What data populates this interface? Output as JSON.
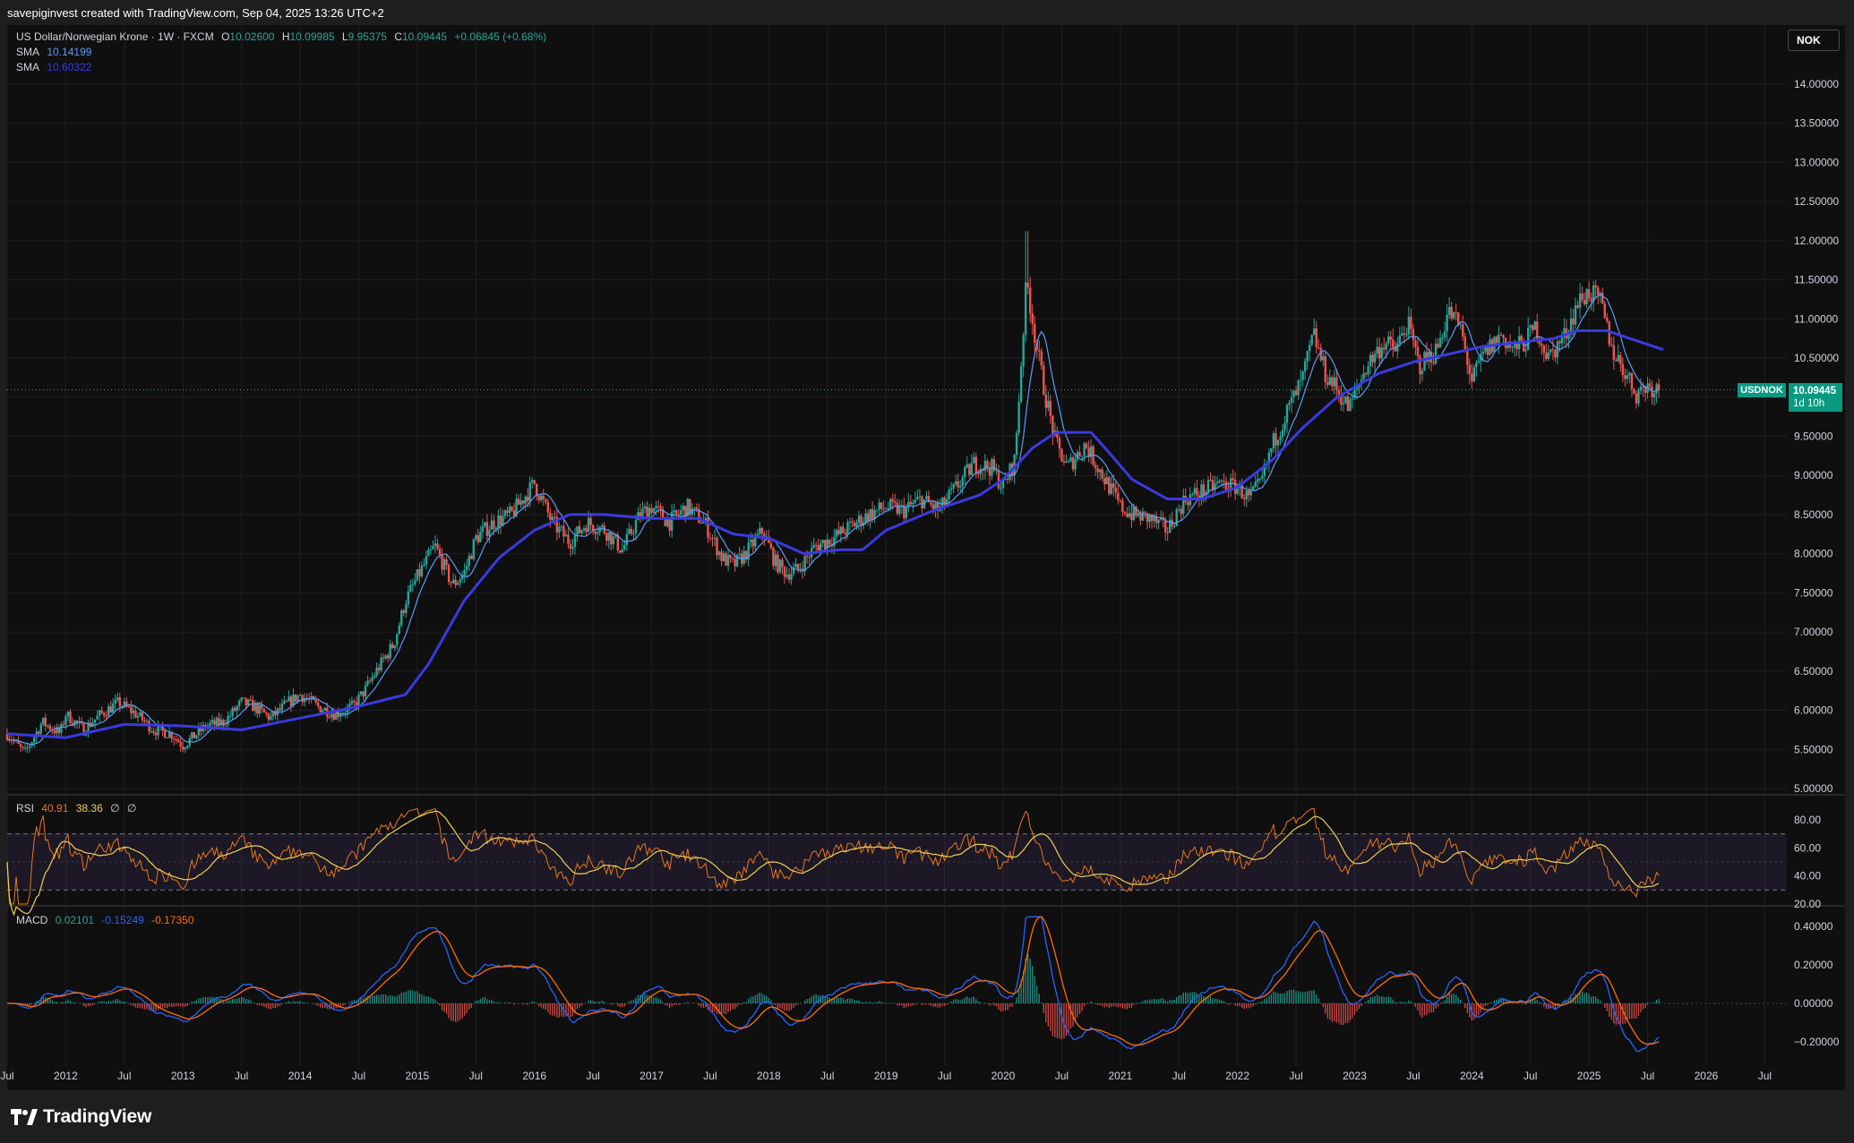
{
  "header": {
    "credit": "savepiginvest created with TradingView.com, Sep 04, 2025 13:26 UTC+2"
  },
  "legend": {
    "title": "US Dollar/Norwegian Krone · 1W · FXCM",
    "open_label": "O",
    "open": "10.02600",
    "high_label": "H",
    "high": "10.09985",
    "low_label": "L",
    "low": "9.95375",
    "close_label": "C",
    "close": "10.09445",
    "change": "+0.06845 (+0.68%)",
    "sma1_label": "SMA",
    "sma1_value": "10.14199",
    "sma2_label": "SMA",
    "sma2_value": "10.60322"
  },
  "rsi_legend": {
    "label": "RSI",
    "v1": "40.91",
    "v2": "38.36",
    "extra1": "∅",
    "extra2": "∅"
  },
  "macd_legend": {
    "label": "MACD",
    "v1": "0.02101",
    "v2": "-0.15249",
    "v3": "-0.17350"
  },
  "currency": "NOK",
  "price_tag": {
    "symbol": "USDNOK",
    "price": "10.09445",
    "countdown": "1d 10h"
  },
  "colors": {
    "background": "#0f0f0f",
    "up": "#26a69a",
    "down": "#ef5350",
    "sma_fast": "#5b9cf6",
    "sma_slow": "#3a3ae0",
    "rsi": "#e8761e",
    "rsi_ma": "#f0d050",
    "macd": "#2962ff",
    "signal": "#ff6d00",
    "price_tag": "#089981"
  },
  "footer": {
    "brand": "TradingView"
  },
  "chart_data": [
    {
      "type": "candlestick",
      "title": "US Dollar/Norwegian Krone · 1W · FXCM",
      "ylim": [
        5.0,
        14.0
      ],
      "y_ticks": [
        "14.00000",
        "13.50000",
        "13.00000",
        "12.50000",
        "12.00000",
        "11.50000",
        "11.00000",
        "10.50000",
        "10.00000",
        "9.50000",
        "9.00000",
        "8.50000",
        "8.00000",
        "7.50000",
        "7.00000",
        "6.50000",
        "6.00000",
        "5.50000",
        "5.00000"
      ],
      "x_ticks": [
        "Jul",
        "2012",
        "Jul",
        "2013",
        "Jul",
        "2014",
        "Jul",
        "2015",
        "Jul",
        "2016",
        "Jul",
        "2017",
        "Jul",
        "2018",
        "Jul",
        "2019",
        "Jul",
        "2020",
        "Jul",
        "2021",
        "Jul",
        "2022",
        "Jul",
        "2023",
        "Jul",
        "2024",
        "Jul",
        "2025",
        "Jul",
        "2026",
        "Jul"
      ],
      "x_tick_times": [
        2011.5,
        2012,
        2012.5,
        2013,
        2013.5,
        2014,
        2014.5,
        2015,
        2015.5,
        2016,
        2016.5,
        2017,
        2017.5,
        2018,
        2018.5,
        2019,
        2019.5,
        2020,
        2020.5,
        2021,
        2021.5,
        2022,
        2022.5,
        2023,
        2023.5,
        2024,
        2024.5,
        2025,
        2025.5,
        2026,
        2026.5
      ],
      "price_path": [
        [
          2011.5,
          5.7
        ],
        [
          2011.65,
          5.45
        ],
        [
          2011.8,
          5.85
        ],
        [
          2011.95,
          5.7
        ],
        [
          2012.0,
          5.95
        ],
        [
          2012.15,
          5.75
        ],
        [
          2012.3,
          5.95
        ],
        [
          2012.45,
          6.1
        ],
        [
          2012.6,
          5.95
        ],
        [
          2012.75,
          5.75
        ],
        [
          2012.9,
          5.7
        ],
        [
          2013.0,
          5.55
        ],
        [
          2013.2,
          5.8
        ],
        [
          2013.35,
          5.85
        ],
        [
          2013.5,
          6.1
        ],
        [
          2013.6,
          6.05
        ],
        [
          2013.75,
          5.9
        ],
        [
          2013.9,
          6.1
        ],
        [
          2014.0,
          6.2
        ],
        [
          2014.15,
          6.05
        ],
        [
          2014.3,
          5.95
        ],
        [
          2014.45,
          6.05
        ],
        [
          2014.55,
          6.25
        ],
        [
          2014.65,
          6.5
        ],
        [
          2014.8,
          6.85
        ],
        [
          2014.9,
          7.4
        ],
        [
          2015.0,
          7.7
        ],
        [
          2015.15,
          8.1
        ],
        [
          2015.3,
          7.6
        ],
        [
          2015.4,
          7.75
        ],
        [
          2015.5,
          8.2
        ],
        [
          2015.65,
          8.4
        ],
        [
          2015.8,
          8.5
        ],
        [
          2016.0,
          8.9
        ],
        [
          2016.15,
          8.4
        ],
        [
          2016.3,
          8.15
        ],
        [
          2016.45,
          8.4
        ],
        [
          2016.6,
          8.3
        ],
        [
          2016.75,
          8.05
        ],
        [
          2016.9,
          8.5
        ],
        [
          2017.0,
          8.6
        ],
        [
          2017.15,
          8.4
        ],
        [
          2017.3,
          8.6
        ],
        [
          2017.45,
          8.4
        ],
        [
          2017.6,
          7.95
        ],
        [
          2017.7,
          7.85
        ],
        [
          2017.8,
          8.0
        ],
        [
          2017.95,
          8.3
        ],
        [
          2018.05,
          7.9
        ],
        [
          2018.15,
          7.75
        ],
        [
          2018.25,
          7.8
        ],
        [
          2018.4,
          8.1
        ],
        [
          2018.55,
          8.2
        ],
        [
          2018.7,
          8.35
        ],
        [
          2018.85,
          8.5
        ],
        [
          2019.0,
          8.6
        ],
        [
          2019.15,
          8.55
        ],
        [
          2019.3,
          8.7
        ],
        [
          2019.45,
          8.55
        ],
        [
          2019.6,
          8.85
        ],
        [
          2019.75,
          9.15
        ],
        [
          2019.9,
          9.1
        ],
        [
          2020.0,
          8.85
        ],
        [
          2020.1,
          9.2
        ],
        [
          2020.2,
          11.5
        ],
        [
          2020.28,
          10.7
        ],
        [
          2020.35,
          10.1
        ],
        [
          2020.45,
          9.4
        ],
        [
          2020.55,
          9.1
        ],
        [
          2020.7,
          9.4
        ],
        [
          2020.85,
          9.0
        ],
        [
          2021.0,
          8.6
        ],
        [
          2021.1,
          8.5
        ],
        [
          2021.25,
          8.45
        ],
        [
          2021.4,
          8.3
        ],
        [
          2021.55,
          8.7
        ],
        [
          2021.7,
          8.8
        ],
        [
          2021.85,
          8.9
        ],
        [
          2022.0,
          8.85
        ],
        [
          2022.1,
          8.7
        ],
        [
          2022.2,
          8.9
        ],
        [
          2022.3,
          9.4
        ],
        [
          2022.45,
          9.9
        ],
        [
          2022.55,
          10.2
        ],
        [
          2022.65,
          10.8
        ],
        [
          2022.75,
          10.3
        ],
        [
          2022.85,
          10.1
        ],
        [
          2022.95,
          9.85
        ],
        [
          2023.1,
          10.4
        ],
        [
          2023.25,
          10.7
        ],
        [
          2023.35,
          10.6
        ],
        [
          2023.45,
          10.95
        ],
        [
          2023.55,
          10.4
        ],
        [
          2023.7,
          10.6
        ],
        [
          2023.8,
          11.1
        ],
        [
          2023.9,
          10.9
        ],
        [
          2024.0,
          10.2
        ],
        [
          2024.1,
          10.55
        ],
        [
          2024.25,
          10.8
        ],
        [
          2024.35,
          10.6
        ],
        [
          2024.45,
          10.7
        ],
        [
          2024.55,
          10.9
        ],
        [
          2024.65,
          10.5
        ],
        [
          2024.8,
          10.8
        ],
        [
          2024.9,
          11.2
        ],
        [
          2025.0,
          11.35
        ],
        [
          2025.1,
          11.2
        ],
        [
          2025.2,
          10.6
        ],
        [
          2025.3,
          10.35
        ],
        [
          2025.4,
          10.05
        ],
        [
          2025.5,
          10.15
        ],
        [
          2025.6,
          10.09
        ]
      ],
      "sma_slow_path": [
        [
          2011.5,
          5.7
        ],
        [
          2012.0,
          5.65
        ],
        [
          2012.5,
          5.82
        ],
        [
          2013.0,
          5.8
        ],
        [
          2013.5,
          5.75
        ],
        [
          2014.0,
          5.9
        ],
        [
          2014.5,
          6.05
        ],
        [
          2014.9,
          6.2
        ],
        [
          2015.1,
          6.6
        ],
        [
          2015.4,
          7.4
        ],
        [
          2015.7,
          7.95
        ],
        [
          2016.0,
          8.3
        ],
        [
          2016.3,
          8.5
        ],
        [
          2016.6,
          8.5
        ],
        [
          2017.0,
          8.45
        ],
        [
          2017.4,
          8.45
        ],
        [
          2017.7,
          8.25
        ],
        [
          2018.0,
          8.2
        ],
        [
          2018.3,
          8.0
        ],
        [
          2018.6,
          8.05
        ],
        [
          2018.8,
          8.05
        ],
        [
          2019.0,
          8.3
        ],
        [
          2019.4,
          8.55
        ],
        [
          2019.8,
          8.75
        ],
        [
          2020.0,
          8.95
        ],
        [
          2020.25,
          9.35
        ],
        [
          2020.45,
          9.55
        ],
        [
          2020.75,
          9.55
        ],
        [
          2020.9,
          9.3
        ],
        [
          2021.1,
          8.95
        ],
        [
          2021.4,
          8.7
        ],
        [
          2021.7,
          8.7
        ],
        [
          2022.0,
          8.85
        ],
        [
          2022.3,
          9.2
        ],
        [
          2022.55,
          9.6
        ],
        [
          2022.85,
          10.0
        ],
        [
          2023.2,
          10.3
        ],
        [
          2023.5,
          10.45
        ],
        [
          2023.8,
          10.55
        ],
        [
          2024.1,
          10.65
        ],
        [
          2024.4,
          10.7
        ],
        [
          2024.7,
          10.75
        ],
        [
          2024.9,
          10.85
        ],
        [
          2025.15,
          10.85
        ],
        [
          2025.45,
          10.7
        ],
        [
          2025.65,
          10.6
        ]
      ],
      "current_price": 10.09445
    },
    {
      "type": "line",
      "title": "RSI",
      "ylim": [
        20,
        80
      ],
      "y_ticks": [
        "80.00",
        "60.00",
        "40.00",
        "20.00"
      ],
      "bands": [
        30,
        70
      ],
      "series": [
        {
          "name": "RSI",
          "value": 40.91
        },
        {
          "name": "RSI-based MA",
          "value": 38.36
        }
      ]
    },
    {
      "type": "line",
      "title": "MACD",
      "ylim": [
        -0.25,
        0.45
      ],
      "y_ticks": [
        "0.40000",
        "0.20000",
        "0.00000",
        "−0.20000"
      ],
      "series": [
        {
          "name": "Histogram",
          "value": 0.02101
        },
        {
          "name": "MACD",
          "value": -0.15249
        },
        {
          "name": "Signal",
          "value": -0.1735
        }
      ]
    }
  ]
}
